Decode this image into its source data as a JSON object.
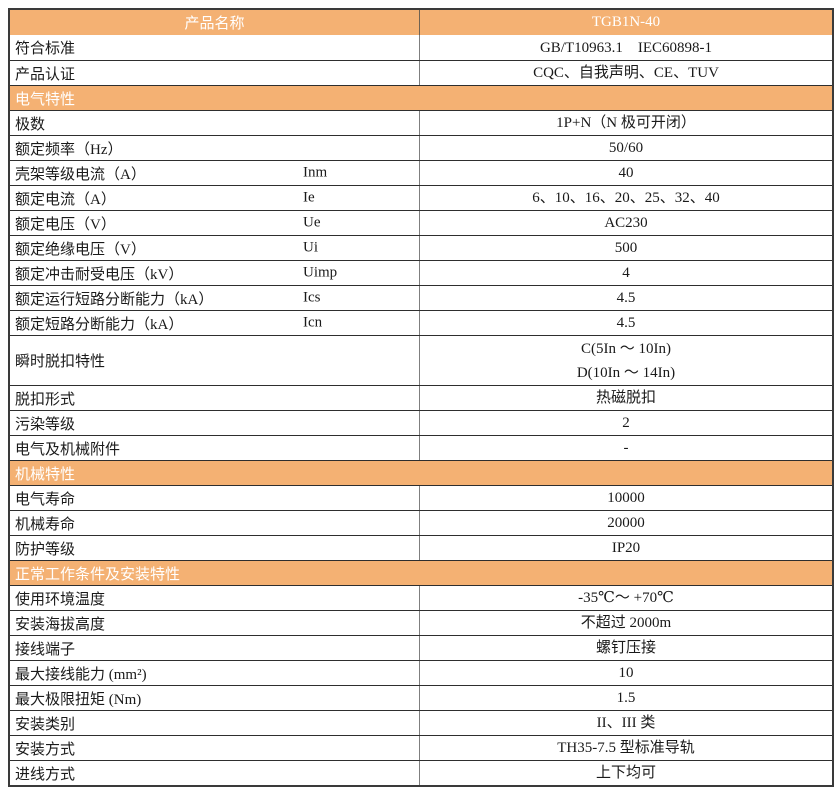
{
  "colors": {
    "accent_orange": "#F4B173",
    "header_text": "#FFFFFF",
    "body_text": "#1A1A1A",
    "border_dark": "#3A3A3A",
    "divider_gray": "#7F7F7F"
  },
  "table": {
    "header": {
      "left": "产品名称",
      "right": "TGB1N-40"
    },
    "rows": [
      {
        "type": "row",
        "label": "符合标准",
        "symbol": "",
        "value": "GB/T10963.1　IEC60898-1"
      },
      {
        "type": "row",
        "label": "产品认证",
        "symbol": "",
        "value": "CQC、自我声明、CE、TUV"
      },
      {
        "type": "section",
        "label": "电气特性"
      },
      {
        "type": "row",
        "label": "极数",
        "symbol": "",
        "value": "1P+N（N 极可开闭）"
      },
      {
        "type": "row",
        "label": "额定频率（Hz）",
        "symbol": "",
        "value": "50/60"
      },
      {
        "type": "row",
        "label": "壳架等级电流（A）",
        "symbol": "Inm",
        "value": "40"
      },
      {
        "type": "row",
        "label": "额定电流（A）",
        "symbol": "Ie",
        "value": "6、10、16、20、25、32、40"
      },
      {
        "type": "row",
        "label": "额定电压（V）",
        "symbol": "Ue",
        "value": "AC230"
      },
      {
        "type": "row",
        "label": "额定绝缘电压（V）",
        "symbol": "Ui",
        "value": "500"
      },
      {
        "type": "row",
        "label": "额定冲击耐受电压（kV）",
        "symbol": "Uimp",
        "value": "4"
      },
      {
        "type": "row",
        "label": "额定运行短路分断能力（kA）",
        "symbol": "Ics",
        "value": "4.5"
      },
      {
        "type": "row",
        "label": "额定短路分断能力（kA）",
        "symbol": "Icn",
        "value": "4.5"
      },
      {
        "type": "row",
        "label": "瞬时脱扣特性",
        "symbol": "",
        "value": [
          "C(5In ～ 10In)",
          "D(10In ～ 14In)"
        ]
      },
      {
        "type": "row",
        "label": "脱扣形式",
        "symbol": "",
        "value": "热磁脱扣"
      },
      {
        "type": "row",
        "label": "污染等级",
        "symbol": "",
        "value": "2"
      },
      {
        "type": "row",
        "label": "电气及机械附件",
        "symbol": "",
        "value": "-"
      },
      {
        "type": "section",
        "label": "机械特性"
      },
      {
        "type": "row",
        "label": "电气寿命",
        "symbol": "",
        "value": "10000"
      },
      {
        "type": "row",
        "label": "机械寿命",
        "symbol": "",
        "value": "20000"
      },
      {
        "type": "row",
        "label": "防护等级",
        "symbol": "",
        "value": "IP20"
      },
      {
        "type": "section",
        "label": "正常工作条件及安装特性"
      },
      {
        "type": "row",
        "label": "使用环境温度",
        "symbol": "",
        "value": "-35℃～ +70℃"
      },
      {
        "type": "row",
        "label": "安装海拔高度",
        "symbol": "",
        "value": "不超过 2000m"
      },
      {
        "type": "row",
        "label": "接线端子",
        "symbol": "",
        "value": "螺钉压接"
      },
      {
        "type": "row",
        "label": "最大接线能力 (mm²)",
        "symbol": "",
        "value": "10"
      },
      {
        "type": "row",
        "label": "最大极限扭矩 (Nm)",
        "symbol": "",
        "value": "1.5"
      },
      {
        "type": "row",
        "label": "安装类别",
        "symbol": "",
        "value": "II、III 类"
      },
      {
        "type": "row",
        "label": "安装方式",
        "symbol": "",
        "value": "TH35-7.5 型标准导轨"
      },
      {
        "type": "row",
        "label": "进线方式",
        "symbol": "",
        "value": "上下均可"
      }
    ]
  }
}
